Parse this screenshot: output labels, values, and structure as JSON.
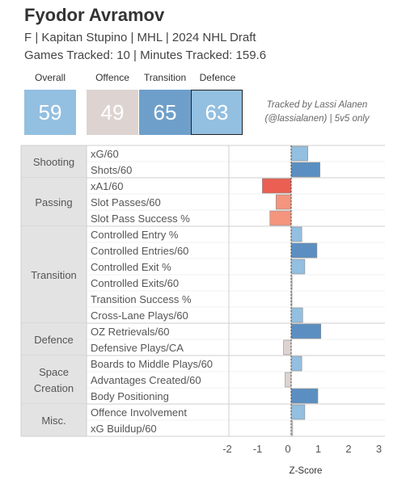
{
  "header": {
    "player_name": "Fyodor Avramov",
    "subtitle": "F | Kapitan Stupino | MHL | 2024 NHL Draft",
    "tracking": "Games Tracked: 10 | Minutes Tracked: 159.6"
  },
  "scores": [
    {
      "label": "Overall",
      "value": "59",
      "color": "#93bfe0",
      "outlined": false
    },
    {
      "label": "Offence",
      "value": "49",
      "color": "#ddd4d2",
      "outlined": false
    },
    {
      "label": "Transition",
      "value": "65",
      "color": "#6e9fca",
      "outlined": false
    },
    {
      "label": "Defence",
      "value": "63",
      "color": "#93bfe0",
      "outlined": true
    }
  ],
  "credit": {
    "line1": "Tracked by Lassi Alanen",
    "line2": "(@lassialanen) | 5v5 only"
  },
  "chart_data": {
    "type": "bar",
    "orientation": "horizontal",
    "xlabel": "Z-Score",
    "xlim": [
      -2,
      3
    ],
    "xticks": [
      -2,
      -1,
      0,
      1,
      2,
      3
    ],
    "groups": [
      {
        "name": "Shooting",
        "metrics": [
          {
            "label": "xG/60",
            "value": 0.55
          },
          {
            "label": "Shots/60",
            "value": 0.95
          }
        ]
      },
      {
        "name": "Passing",
        "metrics": [
          {
            "label": "xA1/60",
            "value": -0.95
          },
          {
            "label": "Slot Passes/60",
            "value": -0.5
          },
          {
            "label": "Slot Pass Success %",
            "value": -0.7
          }
        ]
      },
      {
        "name": "Transition",
        "metrics": [
          {
            "label": "Controlled Entry %",
            "value": 0.35
          },
          {
            "label": "Controlled Entries/60",
            "value": 0.85
          },
          {
            "label": "Controlled Exit %",
            "value": 0.45
          },
          {
            "label": "Controlled Exits/60",
            "value": 0.03
          },
          {
            "label": "Transition Success %",
            "value": 0.0
          },
          {
            "label": "Cross-Lane Plays/60",
            "value": 0.38
          }
        ]
      },
      {
        "name": "Defence",
        "metrics": [
          {
            "label": "OZ Retrievals/60",
            "value": 0.98
          },
          {
            "label": "Defensive Plays/CA",
            "value": -0.25
          }
        ]
      },
      {
        "name": "Space Creation",
        "metrics": [
          {
            "label": "Boards to Middle Plays/60",
            "value": 0.35
          },
          {
            "label": "Advantages Created/60",
            "value": -0.2
          },
          {
            "label": "Body Positioning",
            "value": 0.88
          }
        ]
      },
      {
        "name": "Misc.",
        "metrics": [
          {
            "label": "Offence Involvement",
            "value": 0.45
          },
          {
            "label": "xG Buildup/60",
            "value": 0.05
          }
        ]
      }
    ],
    "colors": {
      "strong_positive": "#5b8fc2",
      "positive": "#93bfe0",
      "neutral": "#ddd4d2",
      "negative": "#f4957e",
      "strong_negative": "#ea5f52"
    }
  }
}
